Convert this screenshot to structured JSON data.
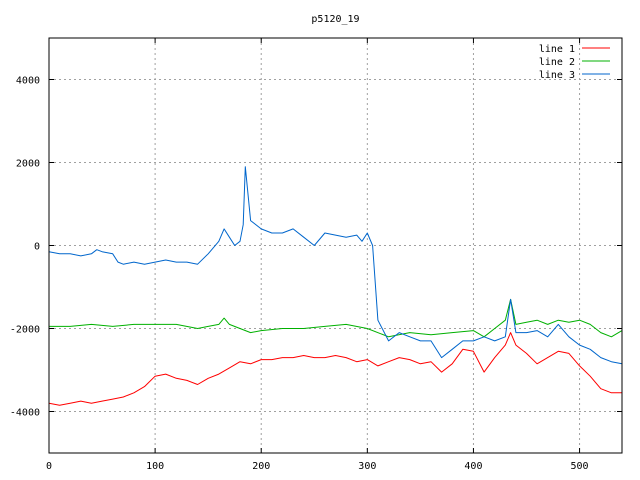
{
  "chart_data": {
    "type": "line",
    "title": "p5120_19",
    "xlabel": "",
    "ylabel": "",
    "xlim": [
      0,
      540
    ],
    "ylim": [
      -5000,
      5000
    ],
    "x_ticks": [
      0,
      100,
      200,
      300,
      400,
      500
    ],
    "y_ticks": [
      -4000,
      -2000,
      0,
      2000,
      4000
    ],
    "grid": true,
    "legend_position": "top-right",
    "series": [
      {
        "name": "line 1",
        "color": "#ff0000",
        "x": [
          0,
          10,
          20,
          30,
          40,
          50,
          60,
          70,
          80,
          90,
          100,
          110,
          120,
          130,
          140,
          150,
          160,
          170,
          180,
          190,
          200,
          210,
          220,
          230,
          240,
          250,
          260,
          270,
          280,
          290,
          300,
          310,
          320,
          330,
          340,
          350,
          360,
          370,
          380,
          390,
          400,
          410,
          420,
          430,
          435,
          440,
          450,
          460,
          470,
          480,
          490,
          500,
          510,
          520,
          530,
          540
        ],
        "y": [
          -3800,
          -3850,
          -3800,
          -3750,
          -3800,
          -3750,
          -3700,
          -3650,
          -3550,
          -3400,
          -3150,
          -3100,
          -3200,
          -3250,
          -3350,
          -3200,
          -3100,
          -2950,
          -2800,
          -2850,
          -2750,
          -2750,
          -2700,
          -2700,
          -2650,
          -2700,
          -2700,
          -2650,
          -2700,
          -2800,
          -2750,
          -2900,
          -2800,
          -2700,
          -2750,
          -2850,
          -2800,
          -3050,
          -2850,
          -2500,
          -2550,
          -3050,
          -2700,
          -2400,
          -2100,
          -2400,
          -2600,
          -2850,
          -2700,
          -2550,
          -2600,
          -2900,
          -3150,
          -3450,
          -3550,
          -3550
        ]
      },
      {
        "name": "line 2",
        "color": "#00b000",
        "x": [
          0,
          20,
          40,
          60,
          80,
          100,
          120,
          140,
          150,
          160,
          165,
          170,
          180,
          190,
          200,
          220,
          240,
          260,
          280,
          300,
          320,
          340,
          360,
          380,
          400,
          410,
          420,
          430,
          435,
          440,
          450,
          460,
          470,
          480,
          490,
          500,
          510,
          520,
          530,
          540
        ],
        "y": [
          -1950,
          -1950,
          -1900,
          -1950,
          -1900,
          -1900,
          -1900,
          -2000,
          -1950,
          -1900,
          -1750,
          -1900,
          -2000,
          -2100,
          -2050,
          -2000,
          -2000,
          -1950,
          -1900,
          -2000,
          -2200,
          -2100,
          -2150,
          -2100,
          -2050,
          -2200,
          -2000,
          -1800,
          -1300,
          -1900,
          -1850,
          -1800,
          -1900,
          -1800,
          -1850,
          -1800,
          -1900,
          -2100,
          -2200,
          -2050
        ]
      },
      {
        "name": "line 3",
        "color": "#0066cc",
        "x": [
          0,
          10,
          20,
          30,
          40,
          45,
          50,
          60,
          65,
          70,
          80,
          90,
          100,
          110,
          120,
          130,
          140,
          150,
          160,
          165,
          170,
          175,
          180,
          183,
          185,
          190,
          200,
          210,
          220,
          230,
          240,
          250,
          260,
          270,
          280,
          290,
          295,
          300,
          305,
          310,
          320,
          330,
          340,
          350,
          360,
          370,
          380,
          390,
          400,
          410,
          420,
          430,
          435,
          440,
          450,
          460,
          470,
          480,
          490,
          500,
          510,
          520,
          530,
          540
        ],
        "y": [
          -150,
          -200,
          -200,
          -250,
          -200,
          -100,
          -150,
          -200,
          -400,
          -450,
          -400,
          -450,
          -400,
          -350,
          -400,
          -400,
          -450,
          -200,
          100,
          400,
          200,
          0,
          100,
          500,
          1900,
          600,
          400,
          300,
          300,
          400,
          200,
          0,
          300,
          250,
          200,
          250,
          100,
          300,
          0,
          -1800,
          -2300,
          -2100,
          -2200,
          -2300,
          -2300,
          -2700,
          -2500,
          -2300,
          -2300,
          -2200,
          -2300,
          -2200,
          -1300,
          -2100,
          -2100,
          -2050,
          -2200,
          -1900,
          -2200,
          -2400,
          -2500,
          -2700,
          -2800,
          -2850
        ]
      }
    ]
  }
}
